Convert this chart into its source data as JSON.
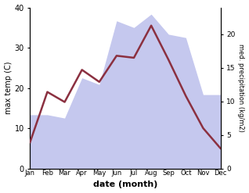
{
  "months": [
    "Jan",
    "Feb",
    "Mar",
    "Apr",
    "May",
    "Jun",
    "Jul",
    "Aug",
    "Sep",
    "Oct",
    "Nov",
    "Dec"
  ],
  "temp": [
    6.5,
    19.0,
    16.5,
    24.5,
    21.5,
    28.0,
    27.5,
    35.5,
    27.0,
    18.0,
    10.0,
    5.0
  ],
  "precip": [
    8.0,
    8.0,
    7.5,
    13.5,
    12.5,
    22.0,
    21.0,
    23.0,
    20.0,
    19.5,
    11.0,
    11.0
  ],
  "temp_color": "#8b3040",
  "precip_fill_color": "#c5c8ee",
  "temp_ylim": [
    0,
    40
  ],
  "precip_ylim": [
    0,
    24
  ],
  "precip_yticks": [
    0,
    5,
    10,
    15,
    20
  ],
  "temp_yticks": [
    0,
    10,
    20,
    30,
    40
  ],
  "xlabel": "date (month)",
  "ylabel_left": "max temp (C)",
  "ylabel_right": "med. precipitation (kg/m2)",
  "background_color": "#ffffff",
  "plot_bg_color": "#ffffff"
}
